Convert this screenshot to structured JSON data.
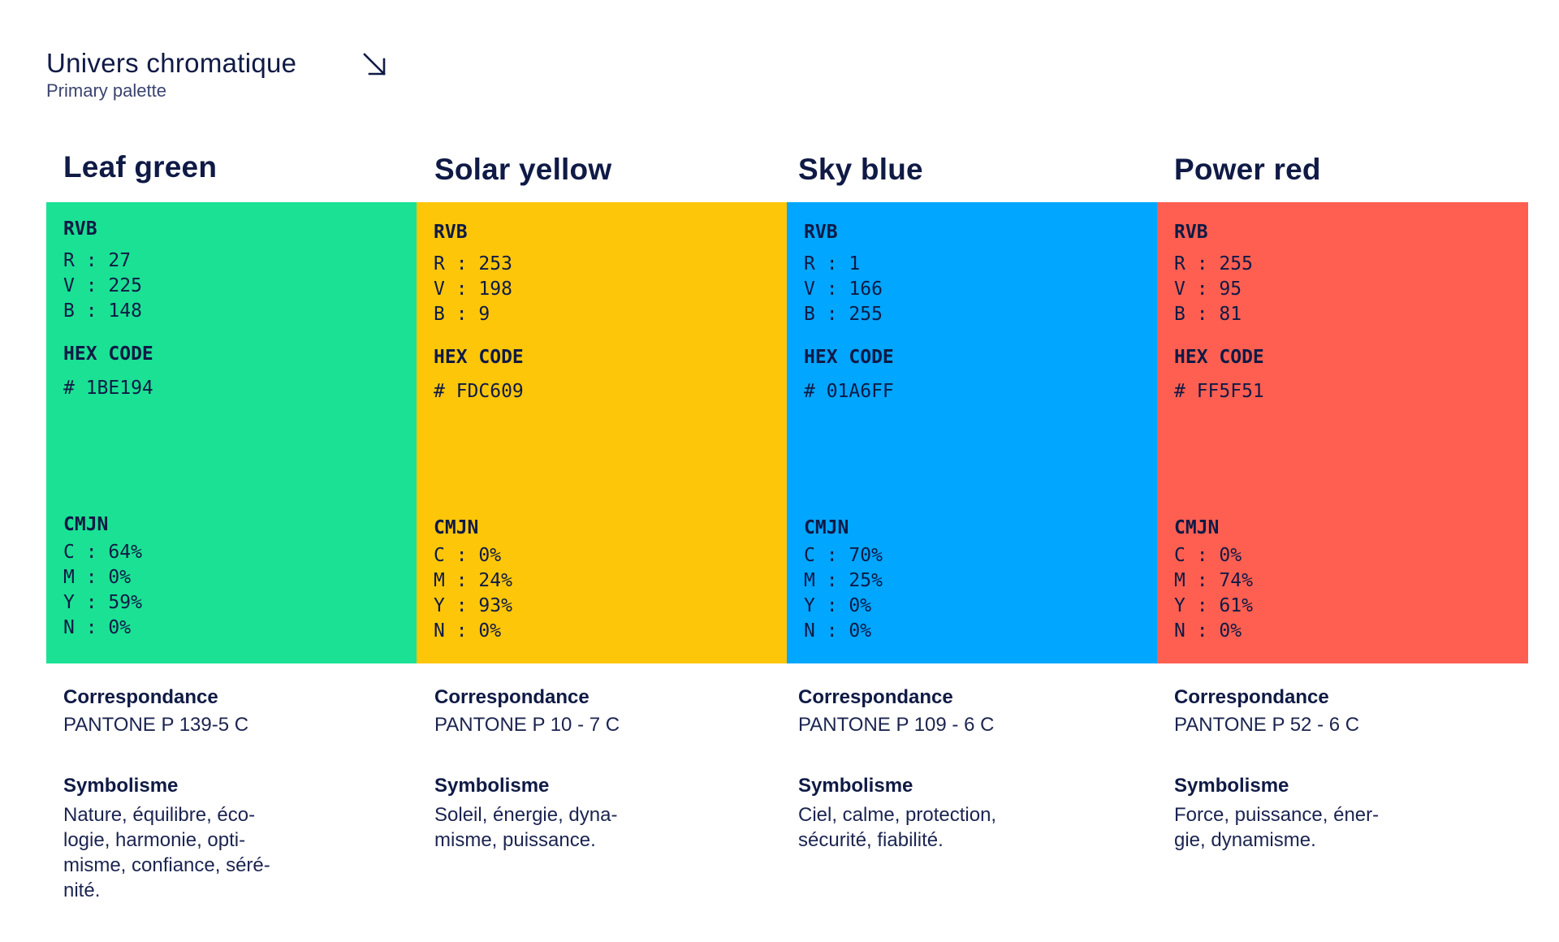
{
  "header": {
    "title": "Univers chromatique",
    "subtitle": "Primary palette",
    "icon": "arrow-down-right-icon"
  },
  "labels": {
    "rvb": "RVB",
    "hex": "HEX CODE",
    "cmjn": "CMJN",
    "correspondance": "Correspondance",
    "symbolisme": "Symbolisme"
  },
  "colors": [
    {
      "name": "Leaf green",
      "swatch_color": "#1BE194",
      "rvb": [
        "R : 27",
        "V : 225",
        "B : 148"
      ],
      "hex": "# 1BE194",
      "cmjn": [
        "C : 64%",
        "M : 0%",
        "Y : 59%",
        "N : 0%"
      ],
      "pantone": "PANTONE P 139-5 C",
      "symbolisme": "Nature, équilibre, éco-\nlogie, harmonie, opti-\nmisme, confiance, séré-\nnité."
    },
    {
      "name": "Solar yellow",
      "swatch_color": "#FDC609",
      "rvb": [
        "R : 253",
        "V : 198",
        "B : 9"
      ],
      "hex": "# FDC609",
      "cmjn": [
        "C : 0%",
        "M : 24%",
        "Y : 93%",
        "N : 0%"
      ],
      "pantone": "PANTONE P 10 - 7 C",
      "symbolisme": "Soleil, énergie, dyna-\nmisme, puissance."
    },
    {
      "name": "Sky blue",
      "swatch_color": "#01A6FF",
      "rvb": [
        "R : 1",
        "V : 166",
        "B : 255"
      ],
      "hex": "# 01A6FF",
      "cmjn": [
        "C : 70%",
        "M : 25%",
        "Y : 0%",
        "N : 0%"
      ],
      "pantone": "PANTONE P 109 - 6 C",
      "symbolisme": "Ciel, calme, protection,\nsécurité, fiabilité."
    },
    {
      "name": "Power red",
      "swatch_color": "#FF5F51",
      "rvb": [
        "R : 255",
        "V : 95",
        "B : 81"
      ],
      "hex": "# FF5F51",
      "cmjn": [
        "C : 0%",
        "M : 74%",
        "Y : 61%",
        "N : 0%"
      ],
      "pantone": "PANTONE P 52 - 6 C",
      "symbolisme": "Force, puissance, éner-\ngie, dynamisme."
    }
  ]
}
